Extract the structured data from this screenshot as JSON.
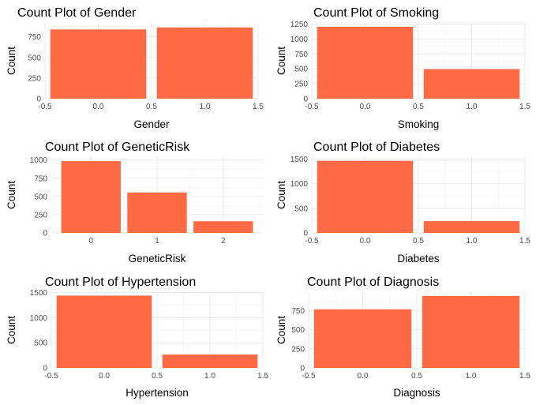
{
  "chart_data": [
    {
      "type": "bar",
      "title": "Count Plot of Gender",
      "xlabel": "Gender",
      "ylabel": "Count",
      "x": [
        0,
        1
      ],
      "values": [
        840,
        865
      ],
      "xlim": [
        -0.5,
        1.5
      ],
      "ylim": [
        0,
        920
      ],
      "xticks": [
        -0.5,
        0.0,
        0.5,
        1.0,
        1.5
      ],
      "xtick_labels": [
        "-0.5",
        "0.0",
        "0.5",
        "1.0",
        "1.5"
      ],
      "yticks": [
        0,
        250,
        500,
        750
      ],
      "ytick_labels": [
        "0",
        "250",
        "500",
        "750"
      ],
      "bar_color": "#FF6A44",
      "grid": true
    },
    {
      "type": "bar",
      "title": "Count Plot of Smoking",
      "xlabel": "Smoking",
      "ylabel": "Count",
      "x": [
        0,
        1
      ],
      "values": [
        1205,
        495
      ],
      "xlim": [
        -0.5,
        1.5
      ],
      "ylim": [
        0,
        1270
      ],
      "xticks": [
        -0.5,
        0.0,
        0.5,
        1.0,
        1.5
      ],
      "xtick_labels": [
        "-0.5",
        "0.0",
        "0.5",
        "1.0",
        "1.5"
      ],
      "yticks": [
        0,
        250,
        500,
        750,
        1000,
        1250
      ],
      "ytick_labels": [
        "0",
        "250",
        "500",
        "750",
        "1000",
        "1250"
      ],
      "bar_color": "#FF6A44",
      "grid": true
    },
    {
      "type": "bar",
      "title": "Count Plot of GeneticRisk",
      "xlabel": "GeneticRisk",
      "ylabel": "Count",
      "x": [
        0,
        1,
        2
      ],
      "values": [
        985,
        555,
        160
      ],
      "xlim": [
        -0.6,
        2.6
      ],
      "ylim": [
        0,
        1040
      ],
      "xticks": [
        0,
        1,
        2
      ],
      "xtick_labels": [
        "0",
        "1",
        "2"
      ],
      "yticks": [
        0,
        250,
        500,
        750,
        1000
      ],
      "ytick_labels": [
        "0",
        "250",
        "500",
        "750",
        "1000"
      ],
      "bar_color": "#FF6A44",
      "grid": true
    },
    {
      "type": "bar",
      "title": "Count Plot of Diabetes",
      "xlabel": "Diabetes",
      "ylabel": "Count",
      "x": [
        0,
        1
      ],
      "values": [
        1465,
        240
      ],
      "xlim": [
        -0.5,
        1.5
      ],
      "ylim": [
        0,
        1540
      ],
      "xticks": [
        -0.5,
        0.0,
        0.5,
        1.0,
        1.5
      ],
      "xtick_labels": [
        "-0.5",
        "0.0",
        "0.5",
        "1.0",
        "1.5"
      ],
      "yticks": [
        0,
        500,
        1000,
        1500
      ],
      "ytick_labels": [
        "0",
        "500",
        "1000",
        "1500"
      ],
      "bar_color": "#FF6A44",
      "grid": true
    },
    {
      "type": "bar",
      "title": "Count Plot of Hypertension",
      "xlabel": "Hypertension",
      "ylabel": "Count",
      "x": [
        0,
        1
      ],
      "values": [
        1440,
        265
      ],
      "xlim": [
        -0.5,
        1.5
      ],
      "ylim": [
        0,
        1510
      ],
      "xticks": [
        -0.5,
        0.0,
        0.5,
        1.0,
        1.5
      ],
      "xtick_labels": [
        "-0.5",
        "0.0",
        "0.5",
        "1.0",
        "1.5"
      ],
      "yticks": [
        0,
        500,
        1000,
        1500
      ],
      "ytick_labels": [
        "0",
        "500",
        "1000",
        "1500"
      ],
      "bar_color": "#FF6A44",
      "grid": true
    },
    {
      "type": "bar",
      "title": "Count Plot of Diagnosis",
      "xlabel": "Diagnosis",
      "ylabel": "Count",
      "x": [
        0,
        1
      ],
      "values": [
        765,
        940
      ],
      "xlim": [
        -0.5,
        1.5
      ],
      "ylim": [
        0,
        990
      ],
      "xticks": [
        -0.5,
        0.0,
        0.5,
        1.0,
        1.5
      ],
      "xtick_labels": [
        "-0.5",
        "0.0",
        "0.5",
        "1.0",
        "1.5"
      ],
      "yticks": [
        0,
        250,
        500,
        750
      ],
      "ytick_labels": [
        "0",
        "250",
        "500",
        "750"
      ],
      "bar_color": "#FF6A44",
      "grid": true
    }
  ]
}
